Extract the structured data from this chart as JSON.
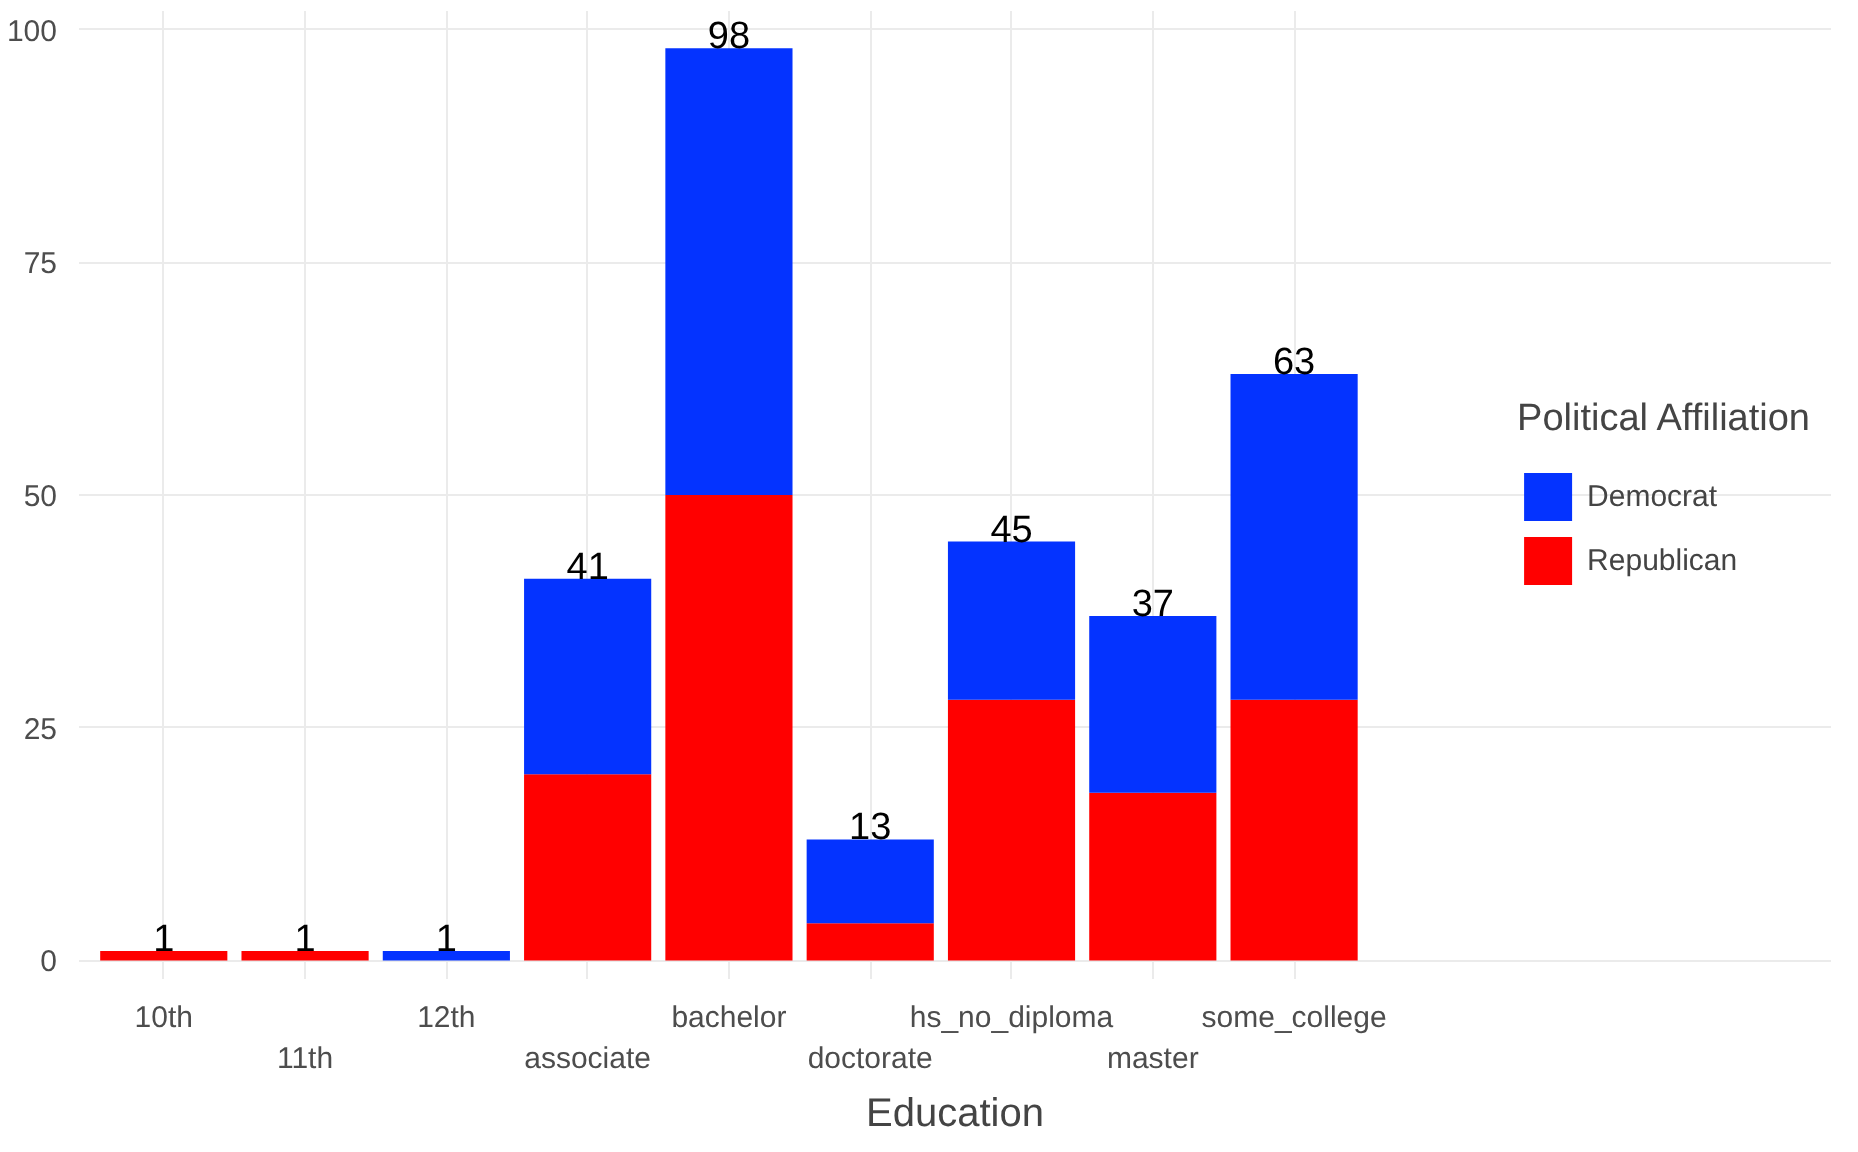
{
  "chart_data": {
    "type": "bar",
    "stacked": true,
    "xlabel": "Education",
    "legend_title": "Political Affiliation",
    "legend": "right",
    "grid": true,
    "categories": [
      "10th",
      "11th",
      "12th",
      "associate",
      "bachelor",
      "doctorate",
      "hs_no_diploma",
      "master",
      "some_college"
    ],
    "series": [
      {
        "name": "Republican",
        "color": "#ff0000",
        "values": [
          1,
          1,
          0,
          20,
          50,
          4,
          28,
          18,
          28
        ]
      },
      {
        "name": "Democrat",
        "color": "#0433ff",
        "values": [
          0,
          0,
          1,
          21,
          48,
          9,
          17,
          19,
          35
        ]
      }
    ],
    "totals": [
      "1",
      "1",
      "1",
      "41",
      "98",
      "13",
      "45",
      "37",
      "63"
    ],
    "ylim": [
      -2,
      102
    ],
    "yticks": [
      0,
      25,
      50,
      75,
      100
    ]
  }
}
